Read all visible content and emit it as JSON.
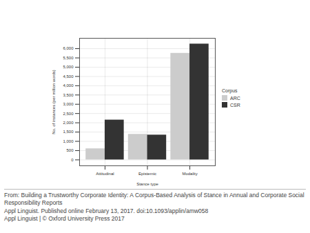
{
  "chart_data": {
    "type": "bar",
    "x_label": "Stance type",
    "y_label": "No. of instances (per million words)",
    "legend_title": "Corpus",
    "categories": [
      "Attitudinal",
      "Epistemic",
      "Modality"
    ],
    "series": [
      {
        "name": "ARC",
        "color": "#cccccc",
        "values": [
          600,
          1380,
          5750
        ]
      },
      {
        "name": "CSR",
        "color": "#333333",
        "values": [
          2150,
          1340,
          6250
        ]
      }
    ],
    "ylim": [
      -320,
      6560
    ],
    "yticks": [
      0,
      500,
      1000,
      1500,
      2000,
      2500,
      3000,
      3500,
      4000,
      4500,
      5000,
      5500,
      6000
    ],
    "grid": true,
    "legend": "right",
    "caption": [
      "From: Building a Trustworthy Corporate Identity: A Corpus-Based Analysis of Stance in Annual and Corporate Social Responsibility Reports",
      "Appl Linguist. Published online February 13, 2017. doi:10.1093/applin/amw058",
      "Appl Linguist | © Oxford University Press 2017"
    ]
  }
}
